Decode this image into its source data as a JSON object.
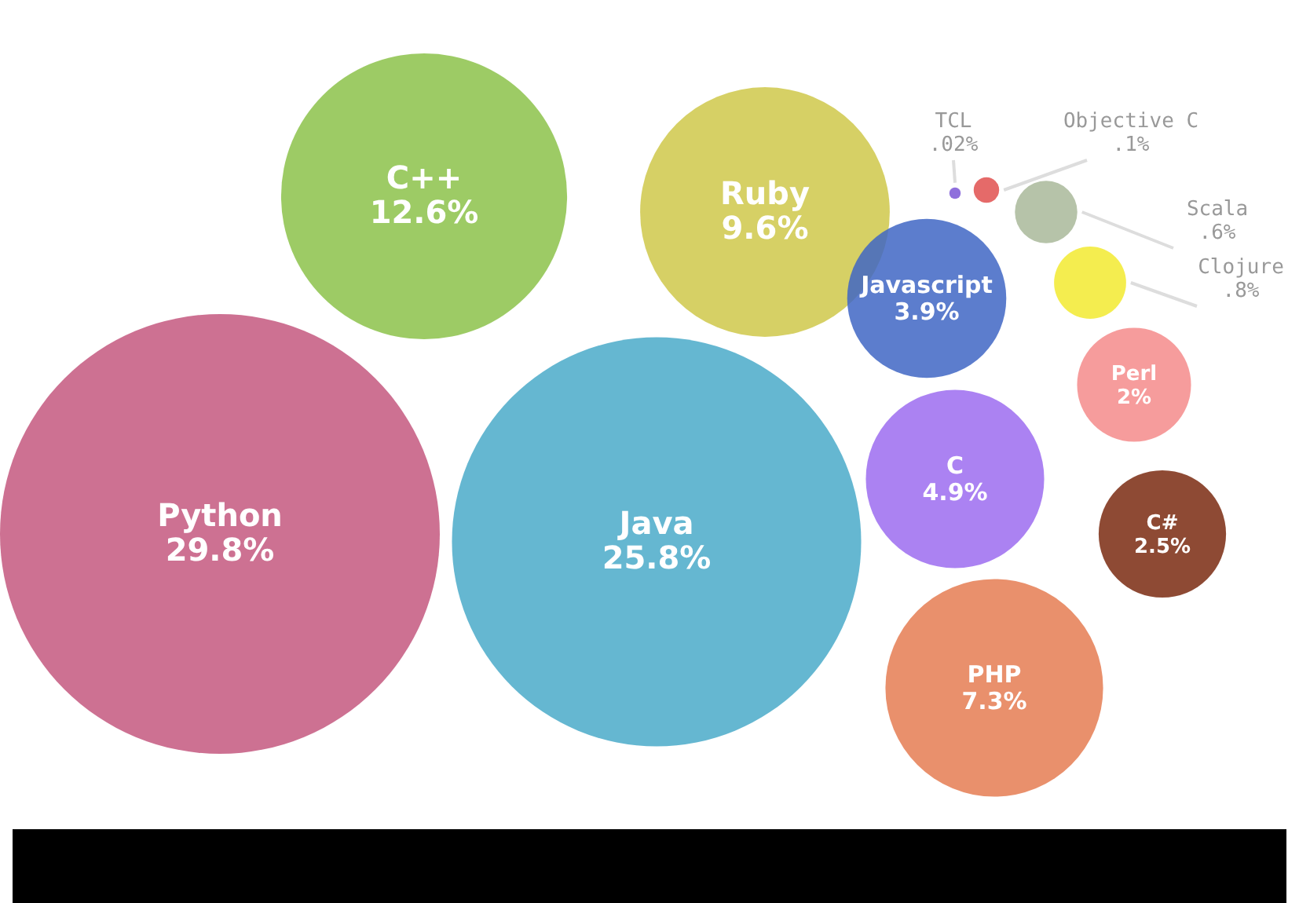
{
  "chart_data": {
    "type": "other",
    "categories": [
      "Python",
      "C++",
      "Java",
      "Ruby",
      "Javascript",
      "C",
      "PHP",
      "Perl",
      "C#",
      "TCL",
      "Objective C",
      "Scala",
      "Clojure"
    ],
    "values": [
      29.8,
      12.6,
      25.8,
      9.6,
      3.9,
      4.9,
      7.3,
      2,
      2.5,
      0.02,
      0.1,
      0.6,
      0.8
    ],
    "value_labels": [
      "29.8%",
      "12.6%",
      "25.8%",
      "9.6%",
      "3.9%",
      "4.9%",
      "7.3%",
      "2%",
      "2.5%",
      ".02%",
      ".1%",
      ".6%",
      ".8%"
    ],
    "colors": [
      "#c4587f",
      "#8cc24a",
      "#4aaac9",
      "#cfc84a",
      "#3f66c4",
      "#9c6cf0",
      "#e57c52",
      "#f58b8b",
      "#7a2a10",
      "#7b57d6",
      "#e0504f",
      "#a9b89a",
      "#f2ea30"
    ]
  }
}
